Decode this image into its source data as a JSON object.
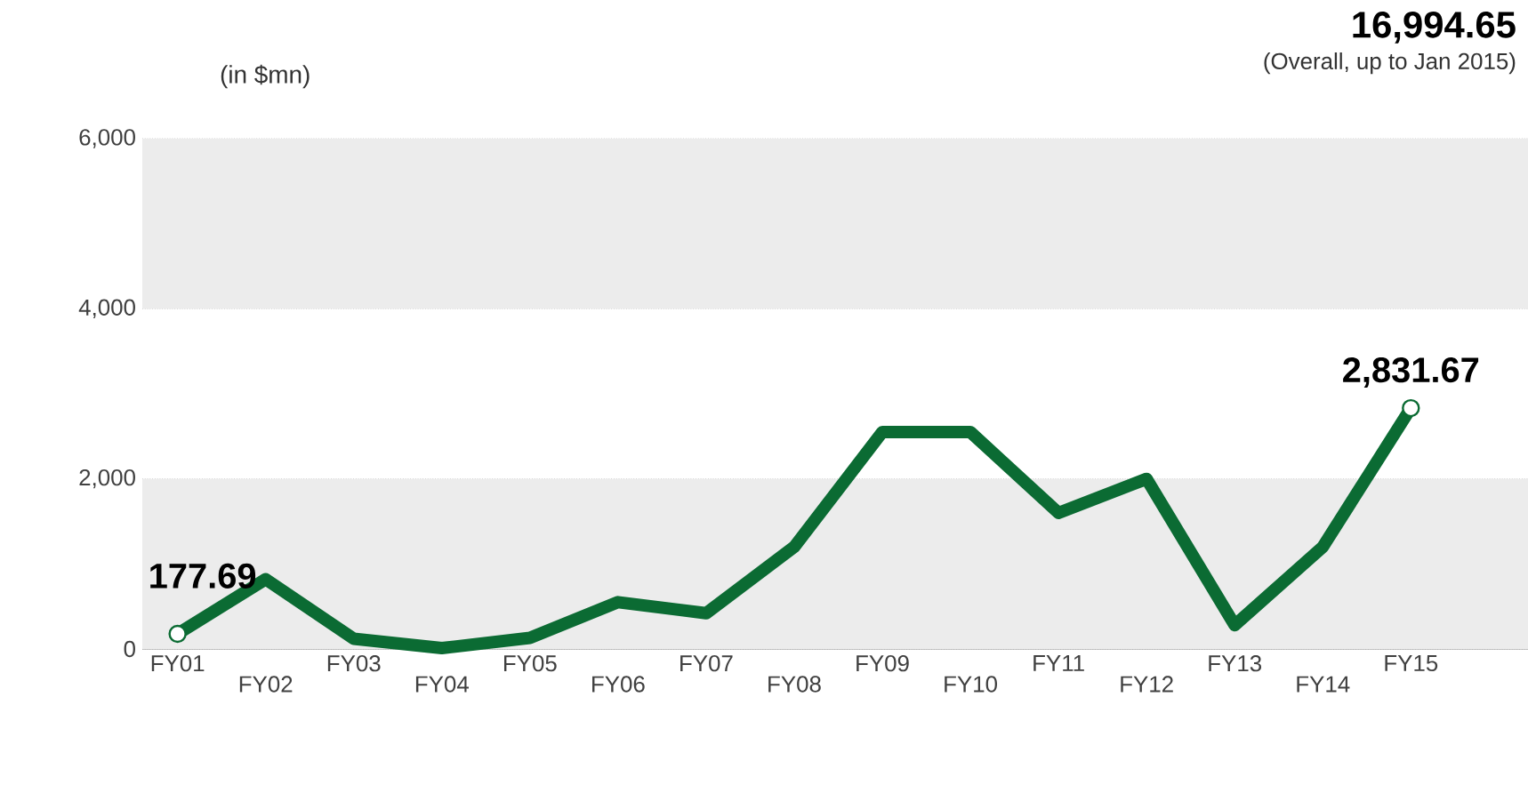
{
  "chart_data": {
    "type": "line",
    "categories": [
      "FY01",
      "FY02",
      "FY03",
      "FY04",
      "FY05",
      "FY06",
      "FY07",
      "FY08",
      "FY09",
      "FY10",
      "FY11",
      "FY12",
      "FY13",
      "FY14",
      "FY15"
    ],
    "values": [
      177.69,
      820,
      120,
      10,
      130,
      550,
      420,
      1200,
      2550,
      2550,
      1600,
      2000,
      280,
      1200,
      2831.67
    ],
    "value_labels": [
      "177.69",
      null,
      null,
      null,
      null,
      null,
      null,
      null,
      null,
      null,
      null,
      null,
      null,
      null,
      "2,831.67"
    ],
    "color": "#0b6b33",
    "ylim": [
      0,
      6000
    ],
    "yticks": [
      0,
      {
        "value": 2000,
        "label": "2,000"
      },
      {
        "value": 4000,
        "label": "4,000"
      },
      {
        "value": 6000,
        "label": "6,000"
      }
    ],
    "grid": "y",
    "bands": [
      {
        "axis": "y",
        "from": 0,
        "to": 2000,
        "color": "#ececec"
      },
      {
        "axis": "y",
        "from": 4000,
        "to": 6000,
        "color": "#ececec"
      }
    ],
    "annotations": [
      "(in $mn)",
      "16,994.65",
      "(Overall, up to Jan 2015)"
    ]
  }
}
